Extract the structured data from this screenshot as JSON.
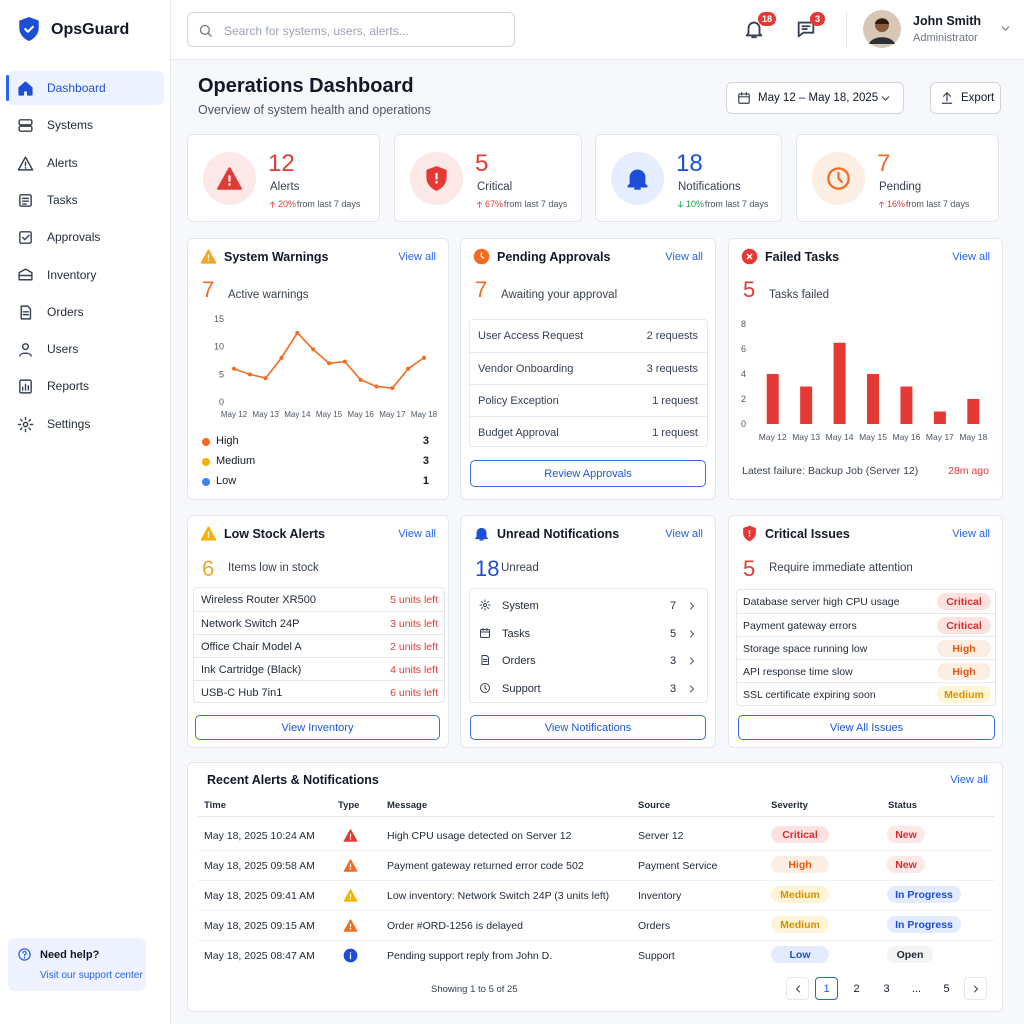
{
  "sidebar": {
    "brand": "OpsGuard",
    "nav": [
      "Dashboard",
      "Systems",
      "Alerts",
      "Tasks",
      "Approvals",
      "Inventory",
      "Orders",
      "Users",
      "Reports",
      "Settings"
    ],
    "help": {
      "title": "Need help?",
      "link": "Visit our support center"
    }
  },
  "header": {
    "search_placeholder": "Search for systems, users, alerts...",
    "notifications": 18,
    "messages": 3,
    "user_name": "John Smith",
    "user_role": "Administrator"
  },
  "page": {
    "title": "Operations Dashboard",
    "subtitle": "Overview of system health and operations",
    "date_range": "May 12 – May 18, 2025",
    "export": "Export"
  },
  "stats": [
    {
      "value": 12,
      "label": "Alerts",
      "change": "20%",
      "note": "from last 7 days"
    },
    {
      "value": 5,
      "label": "Critical",
      "change": "67%",
      "note": "from last 7 days"
    },
    {
      "value": 18,
      "label": "Notifications",
      "change": "10%",
      "note": "from last 7 days"
    },
    {
      "value": 7,
      "label": "Pending",
      "change": "16%",
      "note": "from last 7 days"
    }
  ],
  "system_warnings": {
    "title": "System Warnings",
    "link": "View all",
    "count": 7,
    "count_label": "Active warnings",
    "legend": [
      {
        "name": "High",
        "value": 3,
        "color": "#f26b21"
      },
      {
        "name": "Medium",
        "value": 3,
        "color": "#f5b301"
      },
      {
        "name": "Low",
        "value": 1,
        "color": "#3b82f6"
      }
    ]
  },
  "pending_approvals": {
    "title": "Pending Approvals",
    "link": "View all",
    "count": 7,
    "count_label": "Awaiting your approval",
    "rows": [
      [
        "User Access Request",
        "2 requests"
      ],
      [
        "Vendor Onboarding",
        "3 requests"
      ],
      [
        "Policy Exception",
        "1 request"
      ],
      [
        "Budget Approval",
        "1 request"
      ]
    ],
    "button": "Review Approvals"
  },
  "failed_tasks": {
    "title": "Failed Tasks",
    "link": "View all",
    "count": 5,
    "count_label": "Tasks failed",
    "footer": "Latest failure: Backup Job (Server 12)",
    "footer_time": "28m ago"
  },
  "chart_data": [
    {
      "type": "line",
      "categories": [
        "May 12",
        null,
        "May 13",
        null,
        "May 14",
        null,
        "May 15",
        null,
        "May 16",
        null,
        "May 17",
        null,
        "May 18"
      ],
      "values": [
        6,
        5,
        4.3,
        8,
        12.5,
        9.5,
        7,
        7.3,
        4,
        2.8,
        2.5,
        6,
        8
      ],
      "color": "#f26b21",
      "ylim": [
        0,
        15
      ],
      "yticks": [
        0,
        5,
        10,
        15
      ]
    },
    {
      "type": "bar",
      "categories": [
        "May 12",
        "May 13",
        "May 14",
        "May 15",
        "May 16",
        "May 17",
        "May 18"
      ],
      "values": [
        4,
        3,
        6.5,
        4,
        3,
        1,
        2
      ],
      "color": "#e53935",
      "ylim": [
        0,
        8
      ],
      "yticks": [
        0,
        2,
        4,
        6,
        8
      ]
    }
  ],
  "low_stock": {
    "title": "Low Stock Alerts",
    "link": "View all",
    "count": 6,
    "count_label": "Items low in stock",
    "rows": [
      [
        "Wireless Router XR500",
        "5 units left"
      ],
      [
        "Network Switch 24P",
        "3 units left"
      ],
      [
        "Office Chair Model A",
        "2 units left"
      ],
      [
        "Ink Cartridge (Black)",
        "4 units left"
      ],
      [
        "USB-C Hub 7in1",
        "6 units left"
      ]
    ],
    "button": "View Inventory"
  },
  "unread": {
    "title": "Unread Notifications",
    "link": "View all",
    "count": 18,
    "count_label": "Unread",
    "rows": [
      [
        "System",
        7
      ],
      [
        "Tasks",
        5
      ],
      [
        "Orders",
        3
      ],
      [
        "Support",
        3
      ]
    ],
    "button": "View Notifications"
  },
  "critical": {
    "title": "Critical Issues",
    "link": "View all",
    "count": 5,
    "count_label": "Require immediate attention",
    "rows": [
      [
        "Database server high CPU usage",
        "Critical"
      ],
      [
        "Payment gateway errors",
        "Critical"
      ],
      [
        "Storage space running low",
        "High"
      ],
      [
        "API response time slow",
        "High"
      ],
      [
        "SSL certificate expiring soon",
        "Medium"
      ]
    ],
    "button": "View All Issues"
  },
  "recent": {
    "title": "Recent Alerts & Notifications",
    "link": "View all",
    "columns": [
      "Time",
      "Type",
      "Message",
      "Source",
      "Severity",
      "Status"
    ],
    "rows": [
      [
        "May 18, 2025 10:24 AM",
        "High CPU usage detected on Server 12",
        "Server 12",
        "Critical",
        "New"
      ],
      [
        "May 18, 2025 09:58 AM",
        "Payment gateway returned error code 502",
        "Payment Service",
        "High",
        "New"
      ],
      [
        "May 18, 2025 09:41 AM",
        "Low inventory: Network Switch 24P (3 units left)",
        "Inventory",
        "Medium",
        "In Progress"
      ],
      [
        "May 18, 2025 09:15 AM",
        "Order #ORD-1256 is delayed",
        "Orders",
        "Medium",
        "In Progress"
      ],
      [
        "May 18, 2025 08:47 AM",
        "Pending support reply from John D.",
        "Support",
        "Low",
        "Open"
      ]
    ],
    "footer": "Showing 1 to 5 of 25",
    "pages": [
      1,
      2,
      3,
      "...",
      5
    ]
  }
}
